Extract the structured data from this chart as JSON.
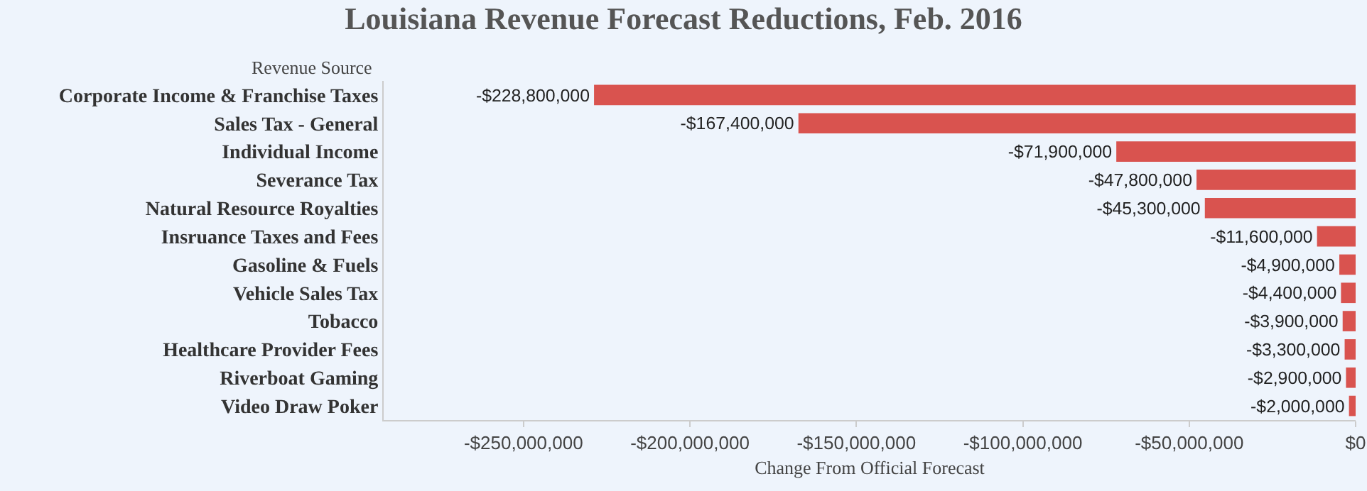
{
  "chart_data": {
    "type": "bar",
    "orientation": "horizontal",
    "title": "Louisiana Revenue Forecast Reductions, Feb. 2016",
    "ylabel": "Revenue Source",
    "xlabel": "Change From Official Forecast",
    "categories": [
      "Corporate Income & Franchise Taxes",
      "Sales Tax - General",
      "Individual Income",
      "Severance Tax",
      "Natural Resource Royalties",
      "Insruance Taxes and Fees",
      "Gasoline & Fuels",
      "Vehicle Sales Tax",
      "Tobacco",
      "Healthcare Provider Fees",
      "Riverboat Gaming",
      "Video Draw Poker"
    ],
    "values": [
      -228800000,
      -167400000,
      -71900000,
      -47800000,
      -45300000,
      -11600000,
      -4900000,
      -4400000,
      -3900000,
      -3300000,
      -2900000,
      -2000000
    ],
    "value_labels": [
      "-$228,800,000",
      "-$167,400,000",
      "-$71,900,000",
      "-$47,800,000",
      "-$45,300,000",
      "-$11,600,000",
      "-$4,900,000",
      "-$4,400,000",
      "-$3,900,000",
      "-$3,300,000",
      "-$2,900,000",
      "-$2,000,000"
    ],
    "color": "#d9534f",
    "xlim": [
      -292000000,
      0
    ],
    "xticks": [
      {
        "value": -250000000,
        "label": "-$250,000,000"
      },
      {
        "value": -200000000,
        "label": "-$200,000,000"
      },
      {
        "value": -150000000,
        "label": "-$150,000,000"
      },
      {
        "value": -100000000,
        "label": "-$100,000,000"
      },
      {
        "value": -50000000,
        "label": "-$50,000,000"
      },
      {
        "value": 0,
        "label": "$0"
      }
    ],
    "grid": false,
    "legend": false
  }
}
